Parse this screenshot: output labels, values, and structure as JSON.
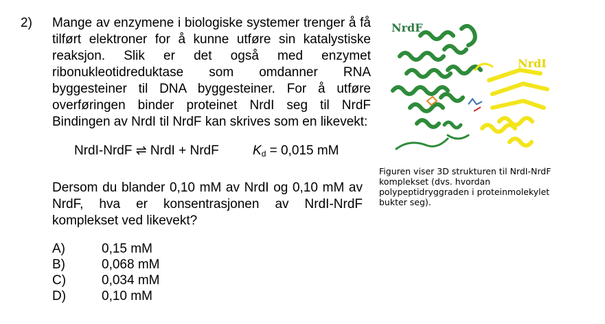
{
  "question": {
    "number": "2)",
    "intro": "Mange av enzymene i biologiske systemer trenger å få tilført elektroner for å kunne utføre sin katalystiske reaksjon. Slik er det også med enzymet ribonukleotidreduktase som omdanner RNA byggesteiner til DNA byggesteiner. For å utføre overføringen binder proteinet NrdI seg til NrdF Bindingen av NrdI til NrdF kan skrives som en likevekt:",
    "equation": {
      "reaction": "NrdI-NrdF ⇌ NrdI + NrdF",
      "kd_symbol": "K",
      "kd_sub": "d",
      "kd_value": " = 0,015 mM"
    },
    "prompt": "Dersom du blander 0,10 mM av NrdI og 0,10 mM av NrdF, hva er konsentrasjonen av NrdI-NrdF komplekset ved likevekt?",
    "options": [
      {
        "letter": "A)",
        "value": "0,15 mM"
      },
      {
        "letter": "B)",
        "value": "0,068 mM"
      },
      {
        "letter": "C)",
        "value": "0,034 mM"
      },
      {
        "letter": "D)",
        "value": "0,10 mM"
      }
    ]
  },
  "figure": {
    "label_left": "NrdF",
    "label_right": "NrdI",
    "color_nrdf": "#2e8b3a",
    "color_nrdi": "#f2e51c",
    "caption": "Figuren viser 3D strukturen til NrdI-NrdF komplekset (dvs. hvordan polypeptidryggraden i proteinmolekylet bukter seg)."
  }
}
